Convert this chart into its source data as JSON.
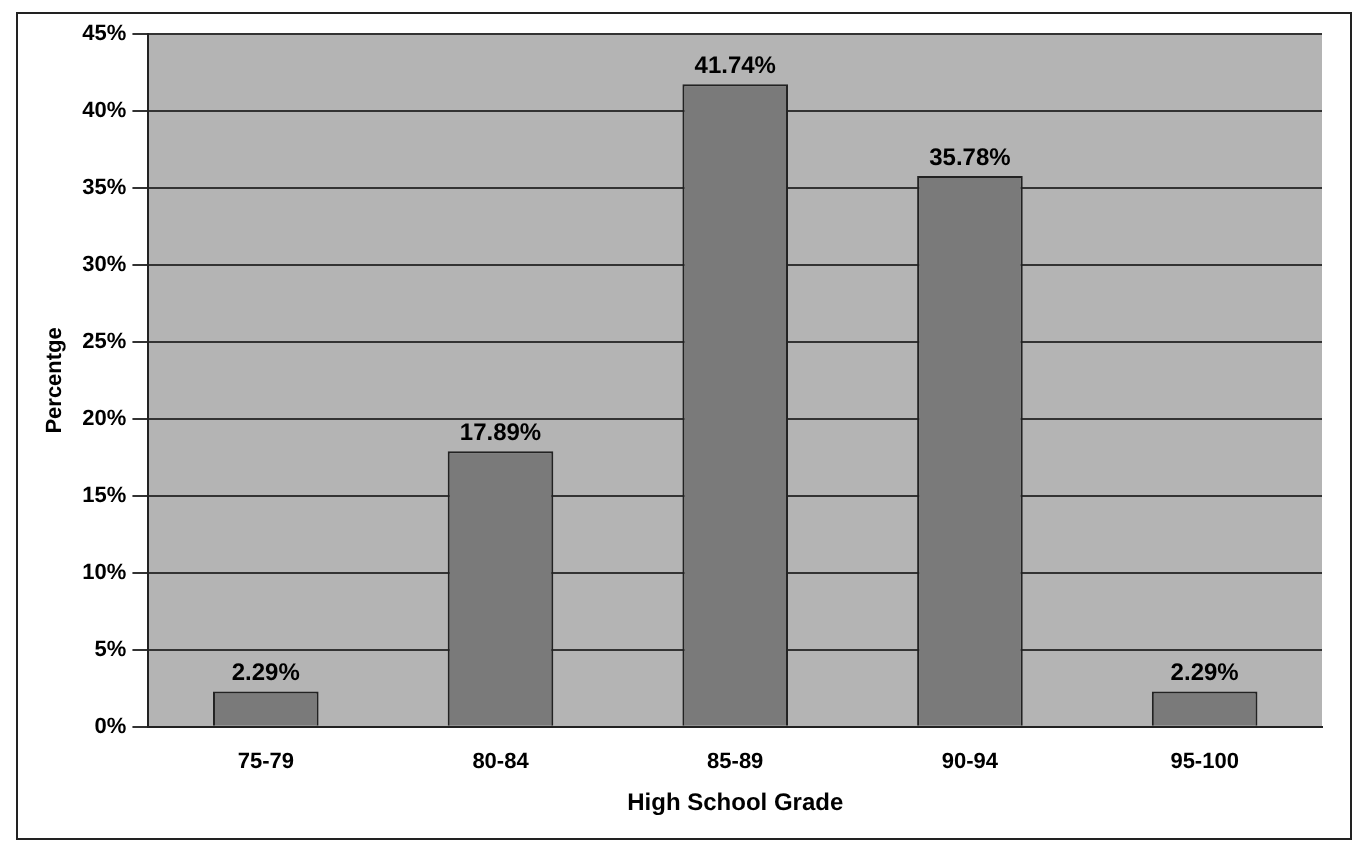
{
  "chart_data": {
    "type": "bar",
    "xlabel": "High School Grade",
    "ylabel": "Percentge",
    "categories": [
      "75-79",
      "80-84",
      "85-89",
      "90-94",
      "95-100"
    ],
    "values": [
      2.29,
      17.89,
      41.74,
      35.78,
      2.29
    ],
    "value_labels": [
      "2.29%",
      "17.89%",
      "41.74%",
      "35.78%",
      "2.29%"
    ],
    "color": "#7a7a7a",
    "ylim": [
      0,
      45
    ],
    "yticks": [
      {
        "value": 0,
        "label": "0%"
      },
      {
        "value": 5,
        "label": "5%"
      },
      {
        "value": 10,
        "label": "10%"
      },
      {
        "value": 15,
        "label": "15%"
      },
      {
        "value": 20,
        "label": "20%"
      },
      {
        "value": 25,
        "label": "25%"
      },
      {
        "value": 30,
        "label": "30%"
      },
      {
        "value": 35,
        "label": "35%"
      },
      {
        "value": 40,
        "label": "40%"
      },
      {
        "value": 45,
        "label": "45%"
      }
    ],
    "grid": "y",
    "legend": false
  }
}
